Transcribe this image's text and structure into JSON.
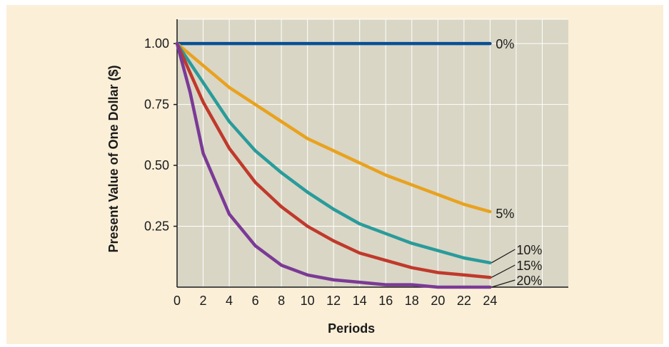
{
  "chart_data": {
    "type": "line",
    "title": "",
    "xlabel": "Periods",
    "ylabel": "Present Value of One Dollar ($)",
    "xlim": [
      0,
      30
    ],
    "ylim": [
      0,
      1.1
    ],
    "x_ticks": [
      0,
      2,
      4,
      6,
      8,
      10,
      12,
      14,
      16,
      18,
      20,
      22,
      24
    ],
    "y_ticks": [
      {
        "value": 0.25,
        "label": "0.25"
      },
      {
        "value": 0.5,
        "label": "0.50"
      },
      {
        "value": 0.75,
        "label": "0.75"
      },
      {
        "value": 1.0,
        "label": "1.00"
      }
    ],
    "grid": true,
    "colors": {
      "background": "#fbefd8",
      "plot_area": "#d9d6c5",
      "grid": "#ffffff"
    },
    "x": [
      0,
      1,
      2,
      4,
      6,
      8,
      10,
      12,
      14,
      16,
      18,
      20,
      22,
      24
    ],
    "series": [
      {
        "name": "0%",
        "color": "#0a4f96",
        "values": [
          1.0,
          1.0,
          1.0,
          1.0,
          1.0,
          1.0,
          1.0,
          1.0,
          1.0,
          1.0,
          1.0,
          1.0,
          1.0,
          1.0
        ]
      },
      {
        "name": "5%",
        "color": "#e9a21f",
        "values": [
          1.0,
          0.955,
          0.91,
          0.82,
          0.75,
          0.68,
          0.61,
          0.56,
          0.51,
          0.46,
          0.42,
          0.38,
          0.34,
          0.31
        ]
      },
      {
        "name": "10%",
        "color": "#2a9b9b",
        "values": [
          1.0,
          0.92,
          0.84,
          0.68,
          0.56,
          0.47,
          0.39,
          0.32,
          0.26,
          0.22,
          0.18,
          0.15,
          0.12,
          0.1
        ]
      },
      {
        "name": "15%",
        "color": "#c0392b",
        "values": [
          1.0,
          0.88,
          0.76,
          0.57,
          0.43,
          0.33,
          0.25,
          0.19,
          0.14,
          0.11,
          0.08,
          0.06,
          0.05,
          0.04
        ]
      },
      {
        "name": "20%",
        "color": "#7b3a96",
        "values": [
          1.0,
          0.8,
          0.55,
          0.3,
          0.17,
          0.09,
          0.05,
          0.03,
          0.02,
          0.01,
          0.01,
          0.0,
          0.0,
          0.0
        ]
      }
    ]
  }
}
